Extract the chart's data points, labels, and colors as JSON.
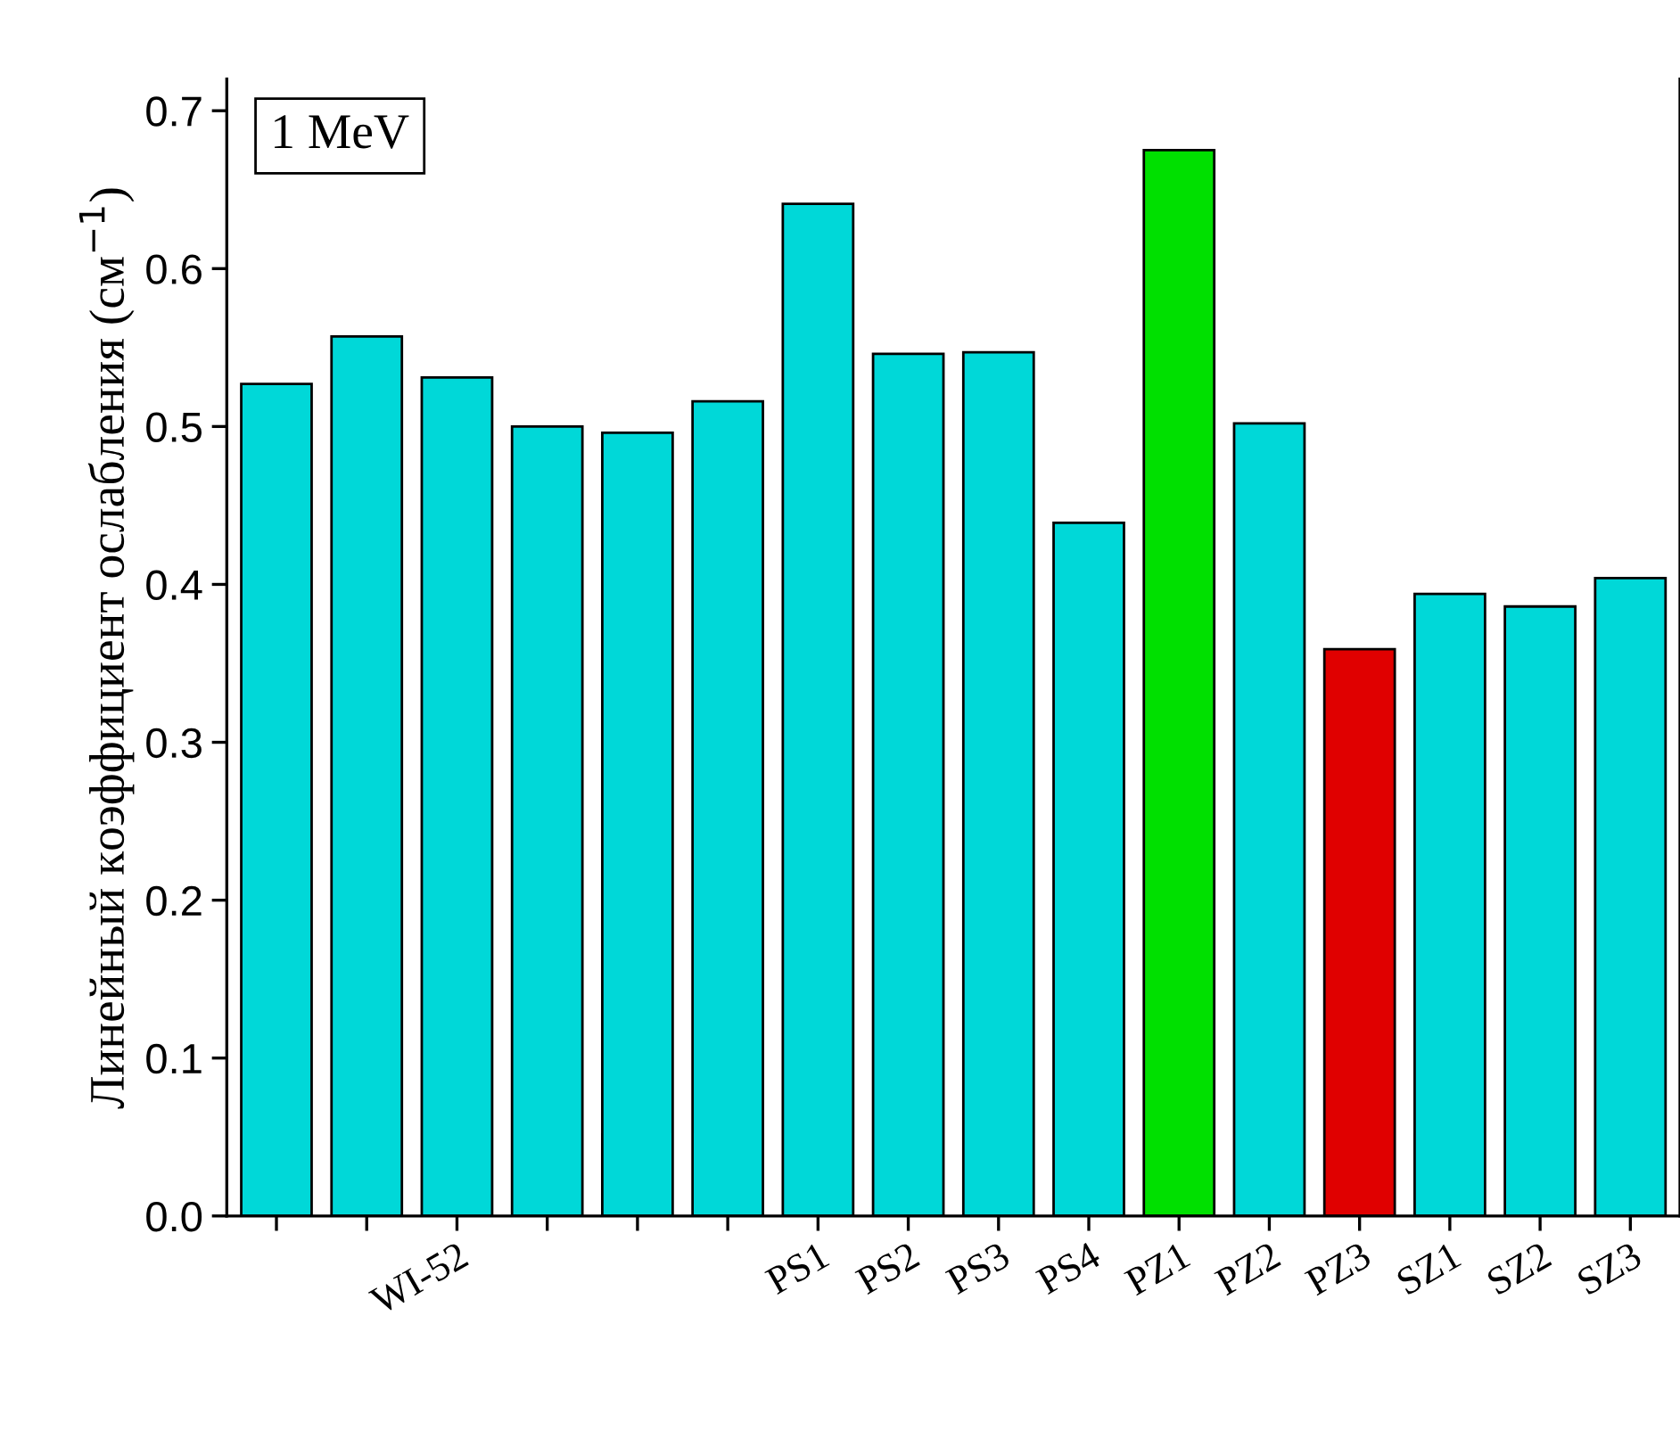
{
  "chart_data": {
    "type": "bar",
    "ylabel": "Линейный коэффициент ослабления (см$^{−1}$)",
    "annotations": [
      "1 MeV"
    ],
    "categories": [
      null,
      null,
      "WI-52",
      null,
      null,
      null,
      "PS1",
      "PS2",
      "PS3",
      "PS4",
      "PZ1",
      "PZ2",
      "PZ3",
      "SZ1",
      "SZ2",
      "SZ3"
    ],
    "values": [
      0.527,
      0.557,
      0.531,
      0.5,
      0.496,
      0.516,
      0.641,
      0.546,
      0.547,
      0.439,
      0.675,
      0.502,
      0.359,
      0.394,
      0.386,
      0.404
    ],
    "colors": [
      "#00d8d8",
      "#00d8d8",
      "#00d8d8",
      "#00d8d8",
      "#00d8d8",
      "#00d8d8",
      "#00d8d8",
      "#00d8d8",
      "#00d8d8",
      "#00d8d8",
      "#00e000",
      "#00d8d8",
      "#e00000",
      "#00d8d8",
      "#00d8d8",
      "#00d8d8"
    ],
    "ylim": [
      0,
      0.72
    ],
    "yticks": [
      {
        "value": 0,
        "label": "0.0"
      },
      0.1,
      0.2,
      0.3,
      0.4,
      0.5,
      0.6,
      0.7
    ],
    "grid": false
  }
}
